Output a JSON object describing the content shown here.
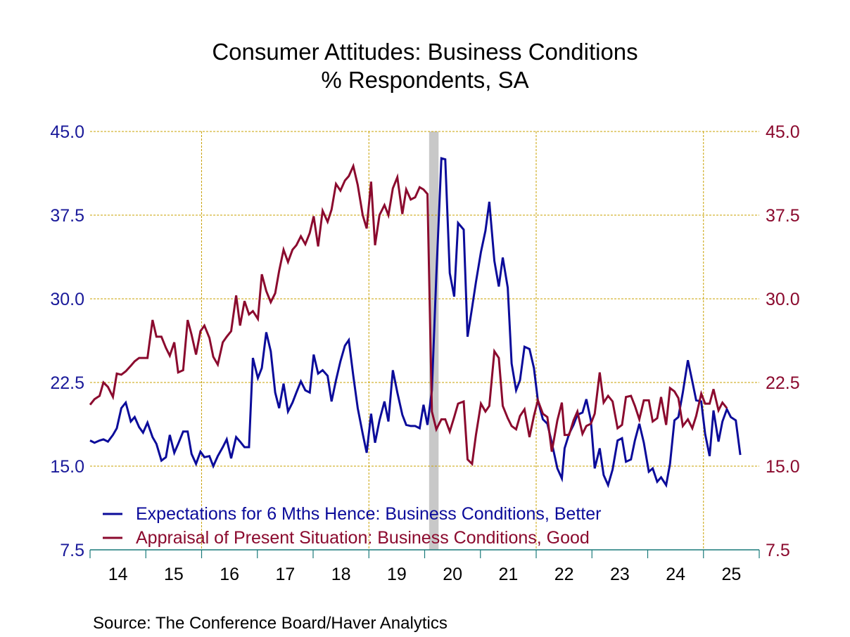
{
  "chart_data": {
    "type": "line",
    "title": "Consumer Attitudes: Business Conditions",
    "subtitle": "% Respondents, SA",
    "source": "Source:  The Conference Board/Haver Analytics",
    "xlabel": "",
    "ylabel_left": "",
    "ylabel_right": "",
    "xlim": [
      2014.0,
      2026.0
    ],
    "ylim": [
      7.5,
      45.0
    ],
    "y_ticks": [
      "45.0",
      "37.5",
      "30.0",
      "22.5",
      "15.0",
      "7.5"
    ],
    "y_tick_values": [
      45.0,
      37.5,
      30.0,
      22.5,
      15.0,
      7.5
    ],
    "x_tick_labels": [
      "14",
      "15",
      "16",
      "17",
      "18",
      "19",
      "20",
      "21",
      "22",
      "23",
      "24",
      "25"
    ],
    "grid": true,
    "legend_position": "bottom-left",
    "recession_shading": [
      [
        2020.08,
        2020.25
      ]
    ],
    "colors": {
      "expectations": "#0b0b9a",
      "appraisal": "#8b0a2e",
      "grid": "#c8a000",
      "axis": "#1a7a7a",
      "recession": "#c8c8c8"
    },
    "series": [
      {
        "name": "Expectations for 6 Mths Hence: Business Conditions, Better",
        "axis": "left",
        "points": [
          [
            2014.0,
            17.3
          ],
          [
            2014.08,
            17.1
          ],
          [
            2014.17,
            17.3
          ],
          [
            2014.24,
            17.4
          ],
          [
            2014.32,
            17.2
          ],
          [
            2014.41,
            17.8
          ],
          [
            2014.48,
            18.4
          ],
          [
            2014.56,
            20.2
          ],
          [
            2014.64,
            20.7
          ],
          [
            2014.73,
            19.0
          ],
          [
            2014.8,
            19.4
          ],
          [
            2014.88,
            18.5
          ],
          [
            2014.95,
            18.0
          ],
          [
            2015.03,
            18.9
          ],
          [
            2015.12,
            17.6
          ],
          [
            2015.19,
            17.0
          ],
          [
            2015.28,
            15.5
          ],
          [
            2015.36,
            15.8
          ],
          [
            2015.43,
            17.8
          ],
          [
            2015.51,
            16.2
          ],
          [
            2015.58,
            17.0
          ],
          [
            2015.67,
            18.1
          ],
          [
            2015.75,
            18.1
          ],
          [
            2015.82,
            16.1
          ],
          [
            2015.9,
            15.2
          ],
          [
            2015.98,
            16.3
          ],
          [
            2016.05,
            15.8
          ],
          [
            2016.14,
            15.9
          ],
          [
            2016.21,
            15.0
          ],
          [
            2016.29,
            15.9
          ],
          [
            2016.38,
            16.7
          ],
          [
            2016.45,
            17.4
          ],
          [
            2016.53,
            15.7
          ],
          [
            2016.62,
            17.6
          ],
          [
            2016.69,
            17.2
          ],
          [
            2016.77,
            16.7
          ],
          [
            2016.85,
            16.7
          ],
          [
            2016.92,
            24.7
          ],
          [
            2017.01,
            22.9
          ],
          [
            2017.08,
            23.8
          ],
          [
            2017.16,
            27.0
          ],
          [
            2017.24,
            25.3
          ],
          [
            2017.32,
            21.6
          ],
          [
            2017.39,
            20.2
          ],
          [
            2017.47,
            22.4
          ],
          [
            2017.55,
            19.9
          ],
          [
            2017.63,
            20.7
          ],
          [
            2017.7,
            21.6
          ],
          [
            2017.78,
            22.6
          ],
          [
            2017.86,
            21.8
          ],
          [
            2017.94,
            21.6
          ],
          [
            2018.01,
            25.0
          ],
          [
            2018.09,
            23.3
          ],
          [
            2018.17,
            23.6
          ],
          [
            2018.26,
            23.1
          ],
          [
            2018.33,
            20.8
          ],
          [
            2018.41,
            22.7
          ],
          [
            2018.49,
            24.4
          ],
          [
            2018.57,
            25.8
          ],
          [
            2018.64,
            26.3
          ],
          [
            2018.72,
            23.1
          ],
          [
            2018.8,
            20.2
          ],
          [
            2018.89,
            17.9
          ],
          [
            2018.96,
            16.2
          ],
          [
            2019.04,
            19.7
          ],
          [
            2019.11,
            17.1
          ],
          [
            2019.19,
            19.1
          ],
          [
            2019.28,
            20.8
          ],
          [
            2019.35,
            19.0
          ],
          [
            2019.43,
            23.6
          ],
          [
            2019.51,
            21.6
          ],
          [
            2019.6,
            19.6
          ],
          [
            2019.67,
            18.7
          ],
          [
            2019.75,
            18.6
          ],
          [
            2019.83,
            18.6
          ],
          [
            2019.91,
            18.4
          ],
          [
            2019.98,
            20.5
          ],
          [
            2020.05,
            18.7
          ],
          [
            2020.13,
            21.8
          ],
          [
            2020.21,
            32.1
          ],
          [
            2020.3,
            42.6
          ],
          [
            2020.37,
            42.5
          ],
          [
            2020.45,
            32.3
          ],
          [
            2020.53,
            30.2
          ],
          [
            2020.6,
            36.8
          ],
          [
            2020.7,
            36.2
          ],
          [
            2020.77,
            26.6
          ],
          [
            2020.85,
            29.2
          ],
          [
            2020.92,
            31.5
          ],
          [
            2021.01,
            34.2
          ],
          [
            2021.09,
            36.1
          ],
          [
            2021.16,
            38.7
          ],
          [
            2021.25,
            33.4
          ],
          [
            2021.33,
            31.1
          ],
          [
            2021.4,
            33.7
          ],
          [
            2021.49,
            31.0
          ],
          [
            2021.56,
            24.2
          ],
          [
            2021.64,
            21.8
          ],
          [
            2021.71,
            22.7
          ],
          [
            2021.79,
            25.7
          ],
          [
            2021.88,
            25.5
          ],
          [
            2021.96,
            23.8
          ],
          [
            2022.03,
            20.9
          ],
          [
            2022.12,
            19.2
          ],
          [
            2022.2,
            18.8
          ],
          [
            2022.28,
            17.1
          ],
          [
            2022.38,
            14.8
          ],
          [
            2022.46,
            13.9
          ],
          [
            2022.51,
            16.6
          ],
          [
            2022.59,
            17.9
          ],
          [
            2022.67,
            18.7
          ],
          [
            2022.74,
            19.6
          ],
          [
            2022.83,
            19.8
          ],
          [
            2022.9,
            21.0
          ],
          [
            2022.98,
            19.1
          ],
          [
            2023.05,
            14.8
          ],
          [
            2023.14,
            16.6
          ],
          [
            2023.21,
            14.2
          ],
          [
            2023.29,
            13.3
          ],
          [
            2023.37,
            14.7
          ],
          [
            2023.46,
            17.3
          ],
          [
            2023.54,
            17.5
          ],
          [
            2023.61,
            15.4
          ],
          [
            2023.7,
            15.6
          ],
          [
            2023.77,
            17.3
          ],
          [
            2023.85,
            18.8
          ],
          [
            2023.93,
            17.1
          ],
          [
            2024.02,
            14.5
          ],
          [
            2024.09,
            14.8
          ],
          [
            2024.17,
            13.6
          ],
          [
            2024.24,
            14.0
          ],
          [
            2024.33,
            13.3
          ],
          [
            2024.4,
            15.2
          ],
          [
            2024.48,
            19.1
          ],
          [
            2024.55,
            19.4
          ],
          [
            2024.63,
            21.6
          ],
          [
            2024.72,
            24.5
          ],
          [
            2024.8,
            22.6
          ],
          [
            2024.87,
            20.9
          ],
          [
            2024.96,
            20.8
          ],
          [
            2025.03,
            17.9
          ],
          [
            2025.11,
            15.9
          ],
          [
            2025.18,
            20.0
          ],
          [
            2025.27,
            17.2
          ],
          [
            2025.34,
            19.0
          ],
          [
            2025.42,
            20.1
          ],
          [
            2025.49,
            19.4
          ],
          [
            2025.58,
            19.1
          ],
          [
            2025.66,
            16.0
          ]
        ]
      },
      {
        "name": "Appraisal of Present Situation: Business Conditions, Good",
        "axis": "right",
        "points": [
          [
            2014.0,
            20.5
          ],
          [
            2014.08,
            21.0
          ],
          [
            2014.17,
            21.3
          ],
          [
            2014.24,
            22.5
          ],
          [
            2014.32,
            22.1
          ],
          [
            2014.41,
            21.2
          ],
          [
            2014.48,
            23.3
          ],
          [
            2014.56,
            23.2
          ],
          [
            2014.64,
            23.5
          ],
          [
            2014.73,
            24.0
          ],
          [
            2014.8,
            24.4
          ],
          [
            2014.88,
            24.7
          ],
          [
            2014.95,
            24.7
          ],
          [
            2015.03,
            24.7
          ],
          [
            2015.12,
            28.1
          ],
          [
            2015.19,
            26.6
          ],
          [
            2015.28,
            26.6
          ],
          [
            2015.36,
            25.6
          ],
          [
            2015.43,
            24.9
          ],
          [
            2015.51,
            26.1
          ],
          [
            2015.58,
            23.4
          ],
          [
            2015.67,
            23.6
          ],
          [
            2015.75,
            28.1
          ],
          [
            2015.82,
            26.8
          ],
          [
            2015.9,
            25.0
          ],
          [
            2015.98,
            27.1
          ],
          [
            2016.05,
            27.6
          ],
          [
            2016.14,
            26.5
          ],
          [
            2016.21,
            24.8
          ],
          [
            2016.29,
            24.1
          ],
          [
            2016.38,
            26.1
          ],
          [
            2016.45,
            26.6
          ],
          [
            2016.53,
            27.1
          ],
          [
            2016.62,
            30.3
          ],
          [
            2016.69,
            27.6
          ],
          [
            2016.77,
            29.8
          ],
          [
            2016.85,
            28.6
          ],
          [
            2016.92,
            28.9
          ],
          [
            2017.01,
            28.2
          ],
          [
            2017.08,
            32.2
          ],
          [
            2017.16,
            30.7
          ],
          [
            2017.24,
            29.7
          ],
          [
            2017.32,
            30.5
          ],
          [
            2017.39,
            32.5
          ],
          [
            2017.47,
            34.4
          ],
          [
            2017.55,
            33.3
          ],
          [
            2017.63,
            34.4
          ],
          [
            2017.7,
            34.8
          ],
          [
            2017.78,
            35.6
          ],
          [
            2017.86,
            34.9
          ],
          [
            2017.94,
            35.9
          ],
          [
            2018.01,
            37.4
          ],
          [
            2018.09,
            34.7
          ],
          [
            2018.17,
            37.9
          ],
          [
            2018.26,
            36.9
          ],
          [
            2018.33,
            38.0
          ],
          [
            2018.41,
            40.3
          ],
          [
            2018.49,
            39.7
          ],
          [
            2018.57,
            40.6
          ],
          [
            2018.64,
            41.0
          ],
          [
            2018.72,
            41.9
          ],
          [
            2018.8,
            40.2
          ],
          [
            2018.89,
            37.5
          ],
          [
            2018.96,
            36.3
          ],
          [
            2019.04,
            40.5
          ],
          [
            2019.11,
            34.8
          ],
          [
            2019.19,
            37.5
          ],
          [
            2019.28,
            38.4
          ],
          [
            2019.35,
            37.5
          ],
          [
            2019.43,
            39.9
          ],
          [
            2019.51,
            40.9
          ],
          [
            2019.6,
            37.6
          ],
          [
            2019.67,
            39.8
          ],
          [
            2019.75,
            38.9
          ],
          [
            2019.83,
            39.1
          ],
          [
            2019.91,
            40.0
          ],
          [
            2019.98,
            39.8
          ],
          [
            2020.05,
            39.4
          ],
          [
            2020.13,
            19.9
          ],
          [
            2020.21,
            18.3
          ],
          [
            2020.3,
            19.2
          ],
          [
            2020.37,
            19.2
          ],
          [
            2020.45,
            18.1
          ],
          [
            2020.53,
            19.4
          ],
          [
            2020.6,
            20.6
          ],
          [
            2020.7,
            20.8
          ],
          [
            2020.77,
            15.6
          ],
          [
            2020.85,
            15.2
          ],
          [
            2020.92,
            17.8
          ],
          [
            2021.01,
            20.6
          ],
          [
            2021.09,
            19.9
          ],
          [
            2021.16,
            20.4
          ],
          [
            2021.25,
            25.3
          ],
          [
            2021.33,
            24.7
          ],
          [
            2021.4,
            20.4
          ],
          [
            2021.49,
            19.3
          ],
          [
            2021.56,
            18.6
          ],
          [
            2021.64,
            18.3
          ],
          [
            2021.71,
            19.5
          ],
          [
            2021.79,
            20.1
          ],
          [
            2021.88,
            17.6
          ],
          [
            2021.96,
            19.5
          ],
          [
            2022.03,
            20.9
          ],
          [
            2022.12,
            19.7
          ],
          [
            2022.2,
            19.4
          ],
          [
            2022.28,
            16.3
          ],
          [
            2022.38,
            19.1
          ],
          [
            2022.46,
            20.7
          ],
          [
            2022.51,
            17.8
          ],
          [
            2022.59,
            17.8
          ],
          [
            2022.67,
            19.1
          ],
          [
            2022.74,
            19.9
          ],
          [
            2022.83,
            17.9
          ],
          [
            2022.9,
            18.6
          ],
          [
            2022.98,
            18.8
          ],
          [
            2023.05,
            19.7
          ],
          [
            2023.14,
            23.4
          ],
          [
            2023.21,
            20.7
          ],
          [
            2023.29,
            21.3
          ],
          [
            2023.37,
            20.8
          ],
          [
            2023.46,
            18.4
          ],
          [
            2023.54,
            18.7
          ],
          [
            2023.61,
            21.2
          ],
          [
            2023.7,
            21.3
          ],
          [
            2023.77,
            20.4
          ],
          [
            2023.85,
            19.2
          ],
          [
            2023.93,
            20.9
          ],
          [
            2024.02,
            20.9
          ],
          [
            2024.09,
            19.0
          ],
          [
            2024.17,
            19.3
          ],
          [
            2024.24,
            21.2
          ],
          [
            2024.33,
            18.7
          ],
          [
            2024.4,
            22.0
          ],
          [
            2024.48,
            21.7
          ],
          [
            2024.55,
            21.1
          ],
          [
            2024.63,
            18.6
          ],
          [
            2024.72,
            19.2
          ],
          [
            2024.8,
            18.4
          ],
          [
            2024.87,
            19.5
          ],
          [
            2024.96,
            21.5
          ],
          [
            2025.03,
            20.6
          ],
          [
            2025.11,
            20.6
          ],
          [
            2025.18,
            21.9
          ],
          [
            2025.27,
            20.0
          ],
          [
            2025.34,
            20.7
          ],
          [
            2025.42,
            20.2
          ]
        ]
      }
    ]
  }
}
